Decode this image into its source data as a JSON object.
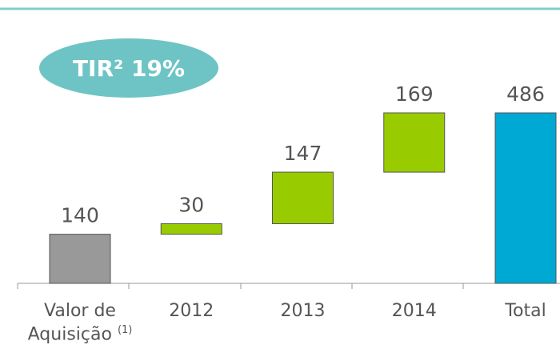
{
  "chart_data": {
    "type": "waterfall",
    "annotation": "TIR² 19%",
    "categories": [
      "Valor de Aquisição",
      "2012",
      "2013",
      "2014",
      "Total"
    ],
    "category_note": "(1)",
    "values": [
      140,
      30,
      147,
      169,
      486
    ],
    "is_total": [
      false,
      false,
      false,
      false,
      true
    ],
    "colors": [
      "#999999",
      "#99cc00",
      "#99cc00",
      "#99cc00",
      "#00a8d4"
    ]
  }
}
